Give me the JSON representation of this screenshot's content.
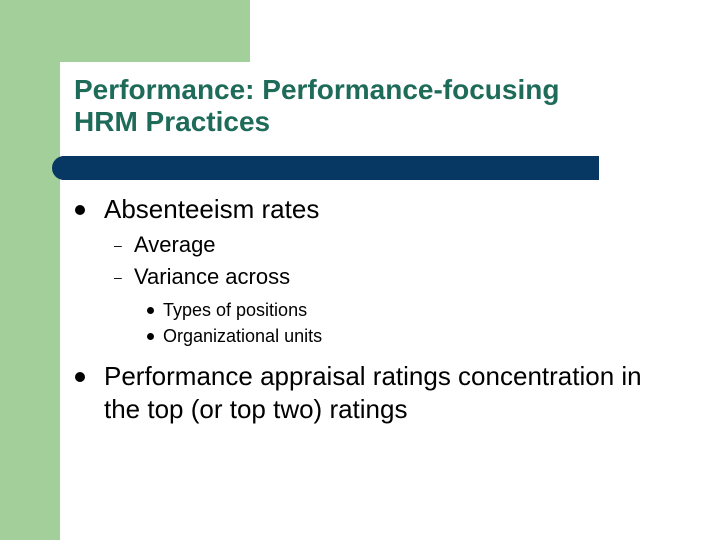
{
  "slide": {
    "title_line1": "Performance: Performance-focusing",
    "title_line2": "HRM Practices",
    "bullets": [
      {
        "text": "Absenteeism rates",
        "sub": [
          {
            "text": "Average"
          },
          {
            "text": "Variance across",
            "sub": [
              {
                "text": "Types of positions"
              },
              {
                "text": "Organizational units"
              }
            ]
          }
        ]
      },
      {
        "text": "Performance appraisal ratings concentration in the top (or top two) ratings"
      }
    ]
  },
  "colors": {
    "accent_green": "#a2cf9a",
    "title_color": "#1f6b5a",
    "rule_blue": "#073763"
  }
}
